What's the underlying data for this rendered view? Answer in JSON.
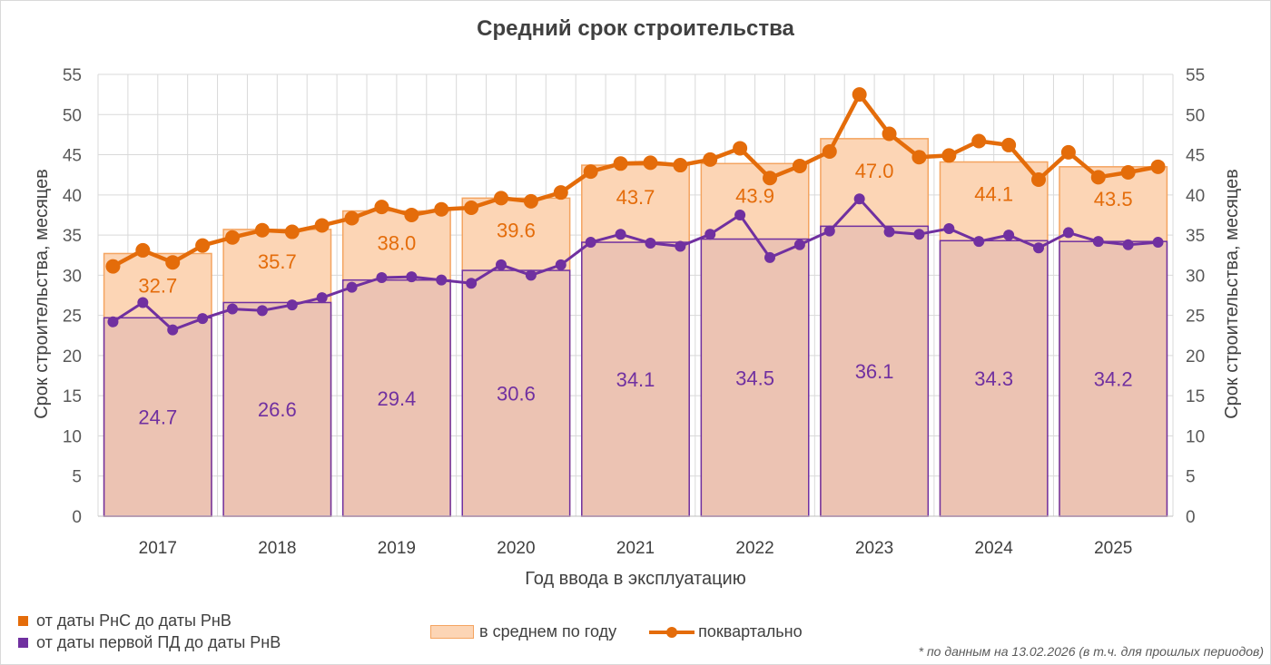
{
  "chart_data": {
    "type": "bar",
    "title": "Средний срок строительства",
    "xlabel": "Год ввода в эксплуатацию",
    "ylabel_left": "Срок строительства, месяцев",
    "ylabel_right": "Срок строительства, месяцев",
    "ylim": [
      0,
      55
    ],
    "yticks": [
      0,
      5,
      10,
      15,
      20,
      25,
      30,
      35,
      40,
      45,
      50,
      55
    ],
    "categories": [
      "2017",
      "2018",
      "2019",
      "2020",
      "2021",
      "2022",
      "2023",
      "2024",
      "2025"
    ],
    "annual_bars": {
      "label": "в среднем по году",
      "rns_to_rnv": [
        32.7,
        35.7,
        38.0,
        39.6,
        43.7,
        43.9,
        47.0,
        44.1,
        43.5
      ],
      "pd_to_rnv": [
        24.7,
        26.6,
        29.4,
        30.6,
        34.1,
        34.5,
        36.1,
        34.3,
        34.2
      ]
    },
    "quarterly_lines": {
      "label": "поквартально",
      "series": [
        {
          "name": "от даты РнС до даты РнВ",
          "color": "#e46c0a",
          "values": [
            31.1,
            33.1,
            31.6,
            33.7,
            34.7,
            35.6,
            35.4,
            36.2,
            37.1,
            38.5,
            37.5,
            38.2,
            38.4,
            39.6,
            39.2,
            40.3,
            42.9,
            43.9,
            44.0,
            43.7,
            44.4,
            45.8,
            42.1,
            43.6,
            45.4,
            52.5,
            47.6,
            44.7,
            44.9,
            46.7,
            46.2,
            41.9,
            45.3,
            42.2,
            42.8,
            43.5
          ]
        },
        {
          "name": "от даты первой ПД до даты РнВ",
          "color": "#7030a0",
          "values": [
            24.2,
            26.6,
            23.2,
            24.6,
            25.8,
            25.6,
            26.3,
            27.2,
            28.5,
            29.7,
            29.8,
            29.4,
            29.0,
            31.3,
            30.0,
            31.3,
            34.1,
            35.1,
            34.0,
            33.6,
            35.1,
            37.5,
            32.2,
            33.8,
            35.5,
            39.5,
            35.4,
            35.1,
            35.8,
            34.2,
            35.0,
            33.4,
            35.3,
            34.2,
            33.8,
            34.1
          ]
        }
      ]
    },
    "colors": {
      "bar_outer_fill": "#fcd5b5",
      "bar_outer_stroke": "#f4a460",
      "bar_inner_fill": "#ecc3b3",
      "bar_inner_stroke": "#7030a0",
      "grid": "#d9d9d9"
    },
    "grid": true
  },
  "legend": {
    "series1": "от даты РнС до даты РнВ",
    "series2": "от даты первой ПД до даты РнВ",
    "bars": "в среднем по году",
    "lines": "поквартально"
  },
  "footnote": "* по данным на 13.02.2026 (в т.ч. для прошлых периодов)"
}
